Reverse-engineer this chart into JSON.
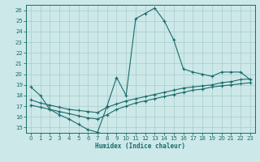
{
  "xlabel": "Humidex (Indice chaleur)",
  "bg_color": "#cce8e8",
  "grid_color": "#b0d0d0",
  "line_color": "#1a6b6b",
  "xlim": [
    -0.5,
    23.5
  ],
  "ylim": [
    14.5,
    26.5
  ],
  "xticks": [
    0,
    1,
    2,
    3,
    4,
    5,
    6,
    7,
    8,
    9,
    10,
    11,
    12,
    13,
    14,
    15,
    16,
    17,
    18,
    19,
    20,
    21,
    22,
    23
  ],
  "yticks": [
    15,
    16,
    17,
    18,
    19,
    20,
    21,
    22,
    23,
    24,
    25,
    26
  ],
  "line1_x": [
    0,
    1,
    2,
    3,
    4,
    5,
    6,
    7,
    8,
    9,
    10,
    11,
    12,
    13,
    14,
    15,
    16,
    17,
    18,
    19,
    20,
    21,
    22,
    23
  ],
  "line1_y": [
    18.8,
    18.0,
    16.7,
    16.2,
    15.8,
    15.3,
    14.8,
    14.55,
    17.0,
    19.7,
    18.0,
    25.2,
    25.7,
    26.2,
    25.0,
    23.2,
    20.5,
    20.2,
    20.0,
    19.8,
    20.2,
    20.2,
    20.2,
    19.5
  ],
  "line2_x": [
    0,
    1,
    2,
    3,
    4,
    5,
    6,
    7,
    8,
    9,
    10,
    11,
    12,
    13,
    14,
    15,
    16,
    17,
    18,
    19,
    20,
    21,
    22,
    23
  ],
  "line2_y": [
    17.6,
    17.3,
    17.1,
    16.9,
    16.7,
    16.6,
    16.5,
    16.4,
    16.9,
    17.2,
    17.5,
    17.7,
    17.9,
    18.1,
    18.3,
    18.5,
    18.7,
    18.8,
    18.9,
    19.0,
    19.2,
    19.3,
    19.5,
    19.55
  ],
  "line3_x": [
    0,
    1,
    2,
    3,
    4,
    5,
    6,
    7,
    8,
    9,
    10,
    11,
    12,
    13,
    14,
    15,
    16,
    17,
    18,
    19,
    20,
    21,
    22,
    23
  ],
  "line3_y": [
    17.1,
    16.9,
    16.7,
    16.5,
    16.3,
    16.1,
    15.9,
    15.8,
    16.2,
    16.7,
    17.0,
    17.3,
    17.5,
    17.7,
    17.9,
    18.1,
    18.3,
    18.5,
    18.6,
    18.8,
    18.9,
    19.0,
    19.1,
    19.2
  ]
}
